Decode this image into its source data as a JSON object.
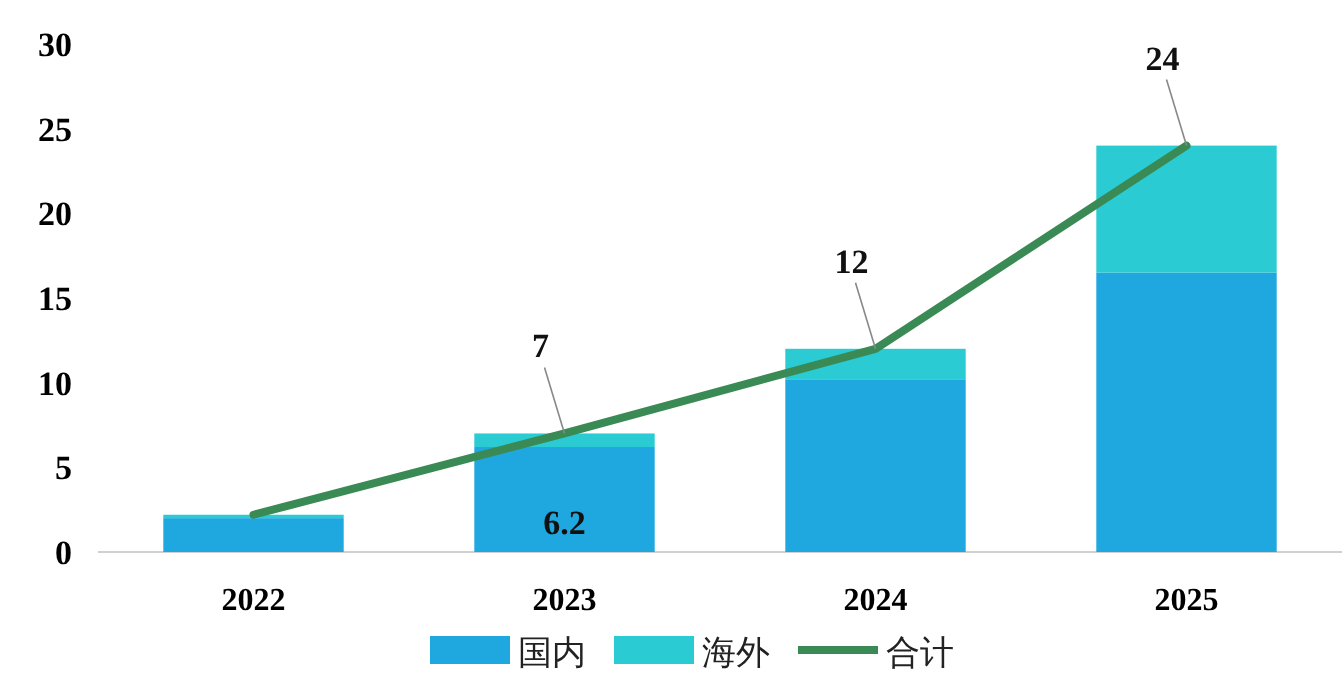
{
  "chart_data": {
    "type": "bar",
    "stacked": true,
    "categories": [
      "2022",
      "2023",
      "2024",
      "2025"
    ],
    "series": [
      {
        "name": "国内",
        "color": "#1fa8e0",
        "values": [
          2.0,
          6.2,
          10.2,
          16.5
        ],
        "value_labels": [
          null,
          "6.2",
          null,
          null
        ]
      },
      {
        "name": "海外",
        "color": "#2acbd3",
        "values": [
          0.2,
          0.8,
          1.8,
          7.5
        ]
      },
      {
        "name": "合计",
        "type": "line",
        "color": "#3a8a55",
        "values": [
          2.2,
          7,
          12,
          24
        ],
        "value_labels": [
          null,
          "7",
          "12",
          "24"
        ]
      }
    ],
    "ylim": [
      0,
      30
    ],
    "yticks": [
      0,
      5,
      10,
      15,
      20,
      25,
      30
    ],
    "grid": false,
    "legend": "bottom",
    "marker": "none"
  }
}
